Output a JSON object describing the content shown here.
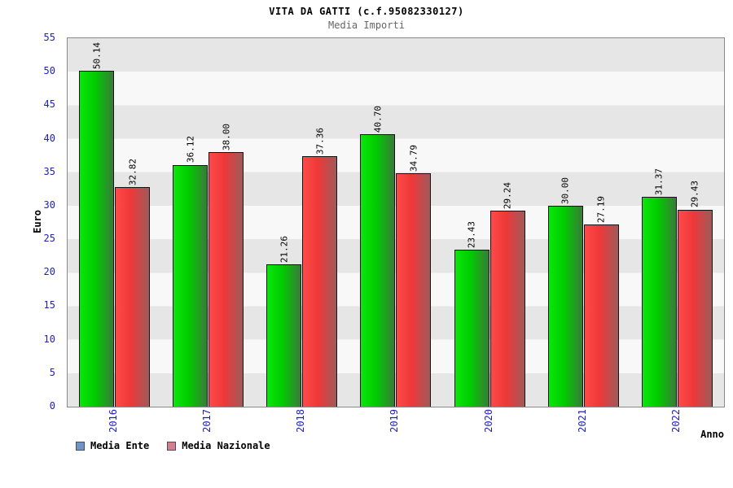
{
  "header": {
    "title": "VITA DA GATTI (c.f.95082330127)",
    "subtitle": "Media Importi"
  },
  "chart_data": {
    "type": "bar",
    "title": "VITA DA GATTI (c.f.95082330127)",
    "subtitle": "Media Importi",
    "xlabel": "Anno",
    "ylabel": "Euro",
    "ylim": [
      0,
      55
    ],
    "ytick_step": 5,
    "grid": "horizontal-bands",
    "legend_position": "bottom-left",
    "categories": [
      "2016",
      "2017",
      "2018",
      "2019",
      "2020",
      "2021",
      "2022"
    ],
    "series": [
      {
        "name": "Media Ente",
        "values": [
          50.14,
          36.12,
          21.26,
          40.7,
          23.43,
          30.0,
          31.37
        ],
        "labels": [
          "50.14",
          "36.12",
          "21.26",
          "40.70",
          "23.43",
          "30.00",
          "31.37"
        ],
        "bar_color_start": "#0ce60c",
        "bar_color_mid": "#00cc00",
        "bar_color_end": "#3a7a3a",
        "legend_swatch": "#7094c4"
      },
      {
        "name": "Media Nazionale",
        "values": [
          32.82,
          38.0,
          37.36,
          34.79,
          29.24,
          27.19,
          29.43
        ],
        "labels": [
          "32.82",
          "38.00",
          "37.36",
          "34.79",
          "29.24",
          "27.19",
          "29.43"
        ],
        "bar_color_start": "#ff4a4a",
        "bar_color_mid": "#ee3838",
        "bar_color_end": "#9e5b5b",
        "legend_swatch": "#d4808c"
      }
    ],
    "colors": {
      "tick_label": "#2121b4",
      "value_label": "#000000",
      "stripe_dark": "#e6e6e6",
      "stripe_light": "#f8f8f8"
    }
  }
}
